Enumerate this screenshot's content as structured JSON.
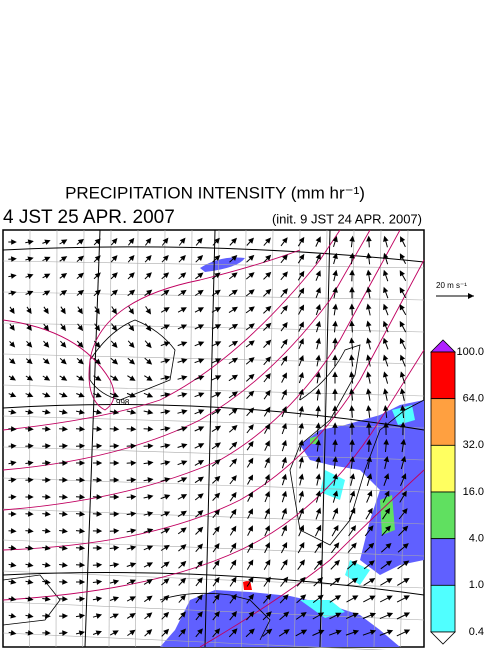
{
  "header": {
    "title": "PRECIPITATION INTENSITY (mm hr⁻¹)",
    "valid_time": "4 JST 25 APR. 2007",
    "init_time": "(init. 9 JST 24 APR. 2007)"
  },
  "vector_legend": "20 m s⁻¹",
  "map": {
    "pressure_label": "998"
  },
  "colorbar": {
    "labels": [
      "100.0",
      "64.0",
      "32.0",
      "16.0",
      "4.0",
      "1.0",
      "0.4"
    ],
    "colors": [
      "#ff0000",
      "#ffa040",
      "#ffff60",
      "#60e060",
      "#6060ff",
      "#50ffff"
    ],
    "over_color": "#b020ff",
    "under_color": "#ffffff"
  }
}
